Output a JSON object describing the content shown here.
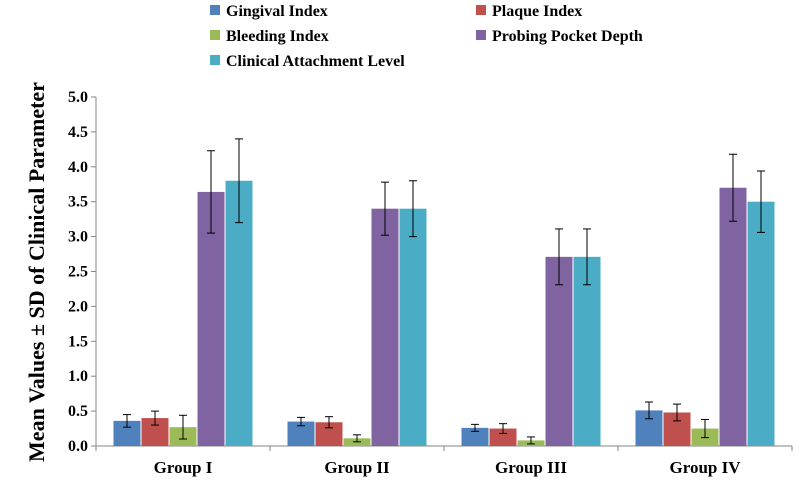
{
  "chart_data": {
    "type": "bar",
    "title": "",
    "xlabel": "",
    "ylabel": "Mean Values ± SD of Clinical Parameter",
    "ylim": [
      0,
      5
    ],
    "yticks": [
      "0.0",
      "0.5",
      "1.0",
      "1.5",
      "2.0",
      "2.5",
      "3.0",
      "3.5",
      "4.0",
      "4.5",
      "5.0"
    ],
    "grid": false,
    "legend_position": "top",
    "categories": [
      "Group I",
      "Group II",
      "Group III",
      "Group IV"
    ],
    "series": [
      {
        "name": "Gingival Index",
        "color": "#4F81BD",
        "values": [
          0.36,
          0.35,
          0.26,
          0.51
        ],
        "sd": [
          0.09,
          0.06,
          0.05,
          0.12
        ]
      },
      {
        "name": "Plaque Index",
        "color": "#C0504D",
        "values": [
          0.4,
          0.34,
          0.25,
          0.48
        ],
        "sd": [
          0.1,
          0.08,
          0.07,
          0.12
        ]
      },
      {
        "name": "Bleeding Index",
        "color": "#9BBB59",
        "values": [
          0.27,
          0.11,
          0.08,
          0.25
        ],
        "sd": [
          0.17,
          0.05,
          0.05,
          0.13
        ]
      },
      {
        "name": "Probing Pocket Depth",
        "color": "#8064A2",
        "values": [
          3.64,
          3.4,
          2.71,
          3.7
        ],
        "sd": [
          0.59,
          0.38,
          0.4,
          0.48
        ]
      },
      {
        "name": "Clinical Attachment Level",
        "color": "#4BACC6",
        "values": [
          3.8,
          3.4,
          2.71,
          3.5
        ],
        "sd": [
          0.6,
          0.4,
          0.4,
          0.44
        ]
      }
    ]
  }
}
